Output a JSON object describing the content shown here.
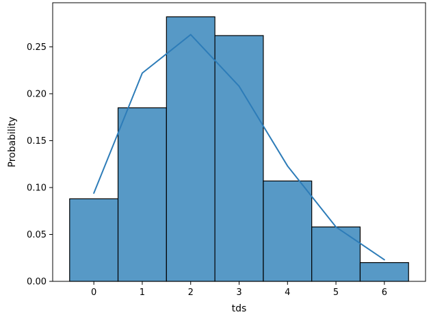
{
  "chart_data": {
    "type": "bar",
    "xlabel": "tds",
    "ylabel": "Probability",
    "categories": [
      0,
      1,
      2,
      3,
      4,
      5,
      6
    ],
    "x_ticks": [
      "0",
      "1",
      "2",
      "3",
      "4",
      "5",
      "6"
    ],
    "y_ticks": [
      "0.00",
      "0.05",
      "0.10",
      "0.15",
      "0.20",
      "0.25"
    ],
    "ylim": [
      0,
      0.297
    ],
    "xlim": [
      -0.85,
      6.85
    ],
    "series": [
      {
        "values": [
          0.088,
          0.185,
          0.282,
          0.262,
          0.107,
          0.058,
          0.02
        ]
      }
    ],
    "line_series": [
      {
        "x": [
          0,
          1,
          2,
          3,
          4,
          5,
          6
        ],
        "values": [
          0.094,
          0.222,
          0.263,
          0.208,
          0.123,
          0.058,
          0.023
        ]
      }
    ],
    "grid": false,
    "legend": "none",
    "colors": {
      "bar_fill": "#5799c6",
      "bar_edge": "#000000",
      "line": "#2d7cb8",
      "axis": "#000000"
    }
  }
}
